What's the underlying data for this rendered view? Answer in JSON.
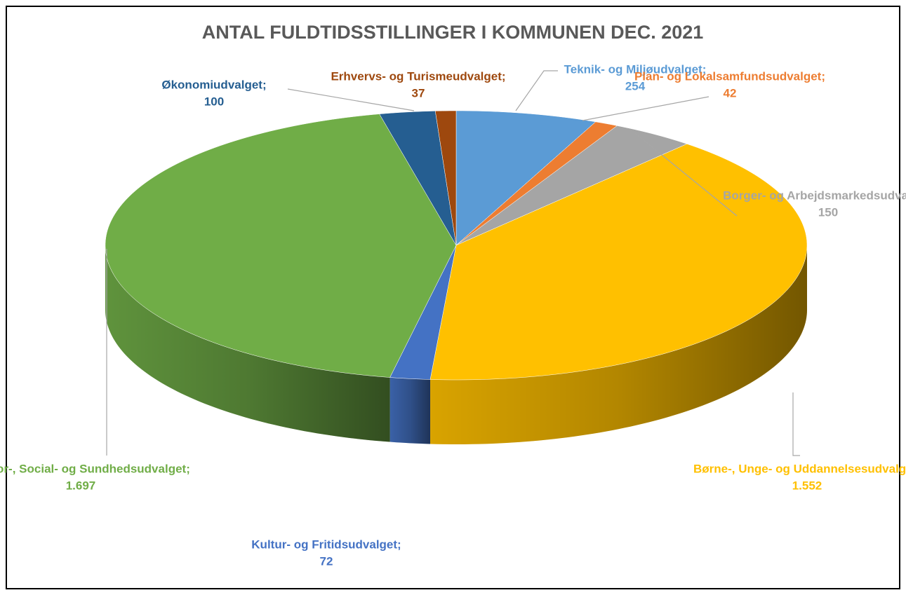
{
  "chart_data": {
    "type": "pie",
    "title": "ANTAL FULDTIDSSTILLINGER I KOMMUNEN DEC. 2021",
    "categories": [
      "Teknik- og Miljøudvalget;",
      "Plan- og Lokalsamfundsudvalget;",
      "Borger- og Arbejdsmarkedsudvalget;",
      "Børne-, Unge- og Uddannelsesudvalget;",
      "Kultur- og Fritidsudvalget;",
      "Senior-, Social- og Sundhedsudvalget;",
      "Økonomiudvalget;",
      "Erhvervs- og Turismeudvalget;"
    ],
    "values": [
      254,
      42,
      150,
      1552,
      72,
      1697,
      100,
      37
    ],
    "value_labels": [
      "254",
      "42",
      "150",
      "1.552",
      "72",
      "1.697",
      "100",
      "37"
    ],
    "colors": [
      "#5b9bd5",
      "#ed7d31",
      "#a5a5a5",
      "#ffc000",
      "#4472c4",
      "#70ad47",
      "#255e91",
      "#9e480e"
    ]
  }
}
